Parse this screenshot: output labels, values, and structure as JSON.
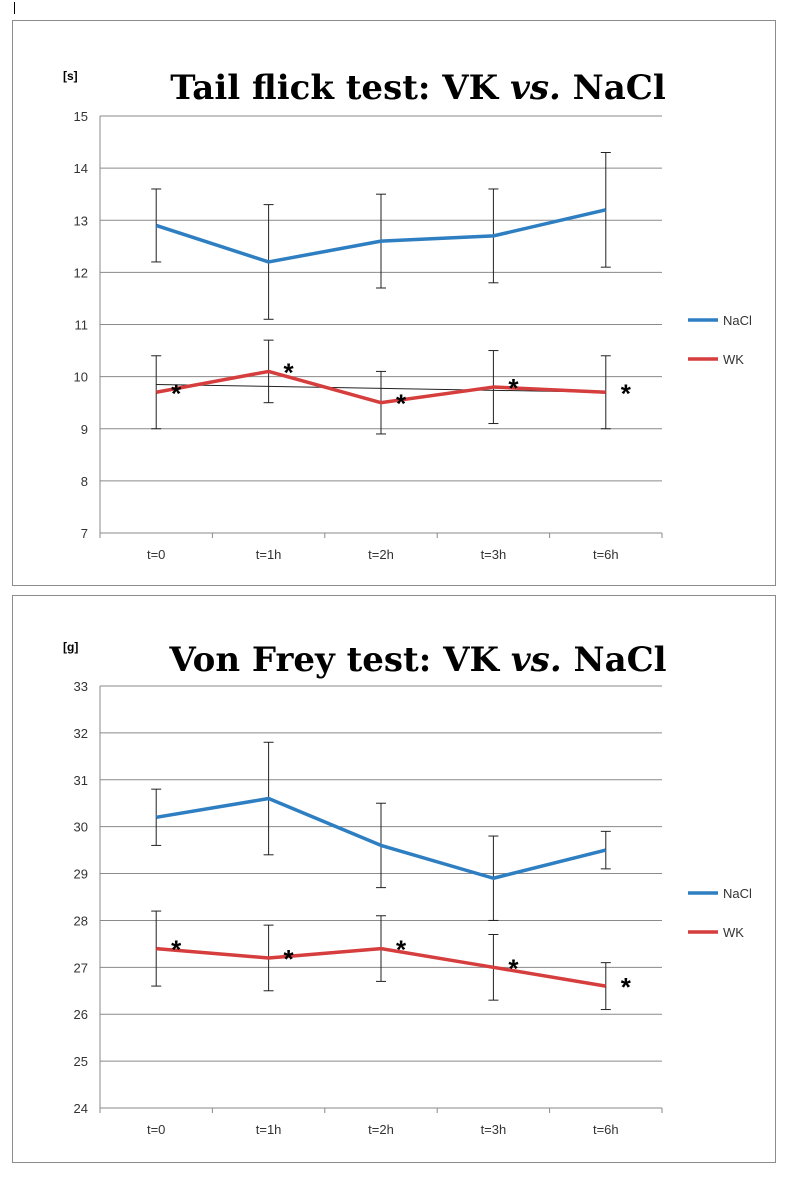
{
  "chart_data": [
    {
      "type": "line",
      "title": "Tail flick test: VK",
      "title_italic": "vs.",
      "title_end": "NaCl",
      "ylabel": "[s]",
      "xlabel": "",
      "categories": [
        "t=0",
        "t=1h",
        "t=2h",
        "t=3h",
        "t=6h"
      ],
      "ylim": [
        7,
        15
      ],
      "yticks": [
        7,
        8,
        9,
        10,
        11,
        12,
        13,
        14,
        15
      ],
      "grid": true,
      "legend_position": "right",
      "series": [
        {
          "name": "NaCl",
          "color": "#2e7ec2",
          "values": [
            12.9,
            12.2,
            12.6,
            12.7,
            13.2
          ],
          "err_low": [
            12.2,
            11.1,
            11.7,
            11.8,
            12.1
          ],
          "err_high": [
            13.6,
            13.3,
            13.5,
            13.6,
            14.3
          ]
        },
        {
          "name": "WK",
          "color": "#d63d3d",
          "values": [
            9.7,
            10.1,
            9.5,
            9.8,
            9.7
          ],
          "err_low": [
            9.0,
            9.5,
            8.9,
            9.1,
            9.0
          ],
          "err_high": [
            10.4,
            10.7,
            10.1,
            10.5,
            10.4
          ]
        }
      ],
      "trendline": [
        9.85,
        9.7
      ],
      "significance_marker": "*",
      "significance_points": [
        0,
        1,
        2,
        3,
        4
      ]
    },
    {
      "type": "line",
      "title": "Von Frey test: VK",
      "title_italic": "vs.",
      "title_end": "NaCl",
      "ylabel": "[g]",
      "xlabel": "",
      "categories": [
        "t=0",
        "t=1h",
        "t=2h",
        "t=3h",
        "t=6h"
      ],
      "ylim": [
        24,
        33
      ],
      "yticks": [
        24,
        25,
        26,
        27,
        28,
        29,
        30,
        31,
        32,
        33
      ],
      "grid": true,
      "legend_position": "right",
      "series": [
        {
          "name": "NaCl",
          "color": "#2e7ec2",
          "values": [
            30.2,
            30.6,
            29.6,
            28.9,
            29.5
          ],
          "err_low": [
            29.6,
            29.4,
            28.7,
            28.0,
            29.1
          ],
          "err_high": [
            30.8,
            31.8,
            30.5,
            29.8,
            29.9
          ]
        },
        {
          "name": "WK",
          "color": "#d63d3d",
          "values": [
            27.4,
            27.2,
            27.4,
            27.0,
            26.6
          ],
          "err_low": [
            26.6,
            26.5,
            26.7,
            26.3,
            26.1
          ],
          "err_high": [
            28.2,
            27.9,
            28.1,
            27.7,
            27.1
          ]
        }
      ],
      "significance_marker": "*",
      "significance_points": [
        0,
        1,
        2,
        3,
        4
      ]
    }
  ]
}
